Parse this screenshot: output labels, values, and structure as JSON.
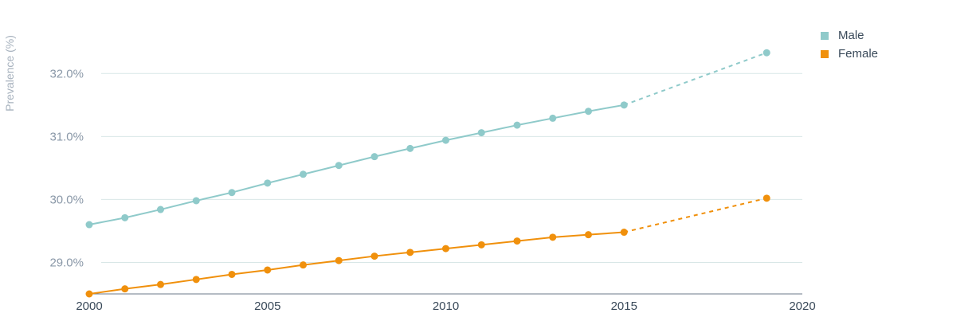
{
  "chart_data": {
    "type": "line",
    "title": "",
    "xlabel": "",
    "ylabel": "Prevalence (%)",
    "xlim": [
      2000,
      2020
    ],
    "ylim": [
      28.5,
      32.75
    ],
    "x_ticks": [
      "2000",
      "2005",
      "2010",
      "2015",
      "2020"
    ],
    "y_ticks": [
      {
        "value": 29.0,
        "label": "29.0%"
      },
      {
        "value": 30.0,
        "label": "30.0%"
      },
      {
        "value": 31.0,
        "label": "31.0%"
      },
      {
        "value": 32.0,
        "label": "32.0%"
      }
    ],
    "grid": true,
    "legend_position": "top-right",
    "series": [
      {
        "name": "Male",
        "color": "#8fcaca",
        "points": [
          {
            "x": 2000,
            "y": 29.6
          },
          {
            "x": 2001,
            "y": 29.71
          },
          {
            "x": 2002,
            "y": 29.84
          },
          {
            "x": 2003,
            "y": 29.98
          },
          {
            "x": 2004,
            "y": 30.11
          },
          {
            "x": 2005,
            "y": 30.26
          },
          {
            "x": 2006,
            "y": 30.4
          },
          {
            "x": 2007,
            "y": 30.54
          },
          {
            "x": 2008,
            "y": 30.68
          },
          {
            "x": 2009,
            "y": 30.81
          },
          {
            "x": 2010,
            "y": 30.94
          },
          {
            "x": 2011,
            "y": 31.06
          },
          {
            "x": 2012,
            "y": 31.18
          },
          {
            "x": 2013,
            "y": 31.29
          },
          {
            "x": 2014,
            "y": 31.4
          },
          {
            "x": 2015,
            "y": 31.5
          }
        ],
        "projection": [
          {
            "x": 2015,
            "y": 31.5
          },
          {
            "x": 2019,
            "y": 32.33
          }
        ]
      },
      {
        "name": "Female",
        "color": "#f0900c",
        "points": [
          {
            "x": 2000,
            "y": 28.5
          },
          {
            "x": 2001,
            "y": 28.58
          },
          {
            "x": 2002,
            "y": 28.65
          },
          {
            "x": 2003,
            "y": 28.73
          },
          {
            "x": 2004,
            "y": 28.81
          },
          {
            "x": 2005,
            "y": 28.88
          },
          {
            "x": 2006,
            "y": 28.96
          },
          {
            "x": 2007,
            "y": 29.03
          },
          {
            "x": 2008,
            "y": 29.1
          },
          {
            "x": 2009,
            "y": 29.16
          },
          {
            "x": 2010,
            "y": 29.22
          },
          {
            "x": 2011,
            "y": 29.28
          },
          {
            "x": 2012,
            "y": 29.34
          },
          {
            "x": 2013,
            "y": 29.4
          },
          {
            "x": 2014,
            "y": 29.44
          },
          {
            "x": 2015,
            "y": 29.48
          }
        ],
        "projection": [
          {
            "x": 2015,
            "y": 29.48
          },
          {
            "x": 2019,
            "y": 30.02
          }
        ]
      }
    ]
  }
}
